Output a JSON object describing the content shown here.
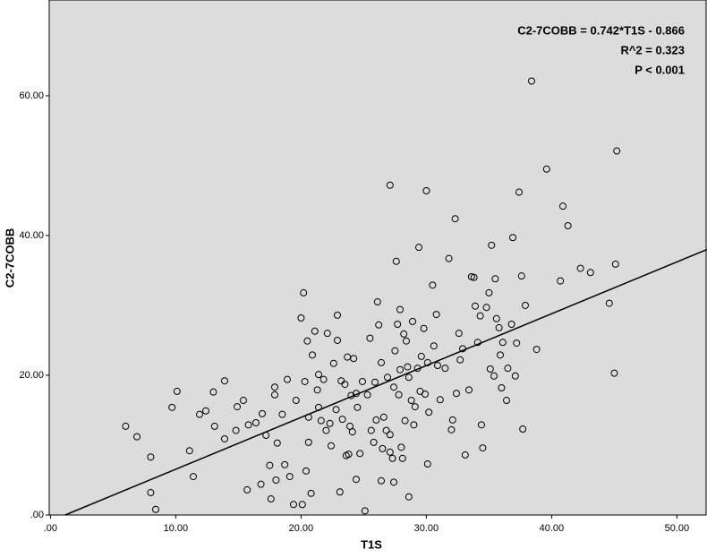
{
  "chart_data": {
    "type": "scatter",
    "x_label": "T1S",
    "y_label": "C2-7COBB",
    "annotations": [
      "C2-7COBB = 0.742*T1S - 0.866",
      "R^2 = 0.323",
      "P < 0.001"
    ],
    "xlim": [
      -0.1,
      52.4
    ],
    "ylim": [
      0,
      73.7
    ],
    "xticks": [
      {
        "value": 0,
        "label": ".00"
      },
      {
        "value": 10,
        "label": "10.00"
      },
      {
        "value": 20,
        "label": "20.00"
      },
      {
        "value": 30,
        "label": "30.00"
      },
      {
        "value": 40,
        "label": "40.00"
      },
      {
        "value": 50,
        "label": "50.00"
      }
    ],
    "yticks": [
      {
        "value": 0,
        "label": ".00"
      },
      {
        "value": 20,
        "label": "20.00"
      },
      {
        "value": 40,
        "label": "40.00"
      },
      {
        "value": 60,
        "label": "60.00"
      }
    ],
    "background": "#dcdcdc",
    "marker_color": "#000000",
    "fit_line": {
      "x": [
        1.17,
        52.4
      ],
      "y": [
        0,
        38.0
      ]
    },
    "x": [
      6.0,
      6.9,
      8.0,
      8.0,
      8.4,
      9.7,
      10.1,
      11.1,
      11.4,
      11.9,
      12.4,
      13.0,
      13.1,
      13.9,
      13.9,
      14.8,
      14.9,
      15.4,
      15.7,
      15.8,
      16.4,
      16.9,
      16.8,
      17.2,
      17.6,
      17.5,
      17.9,
      17.9,
      18.0,
      18.1,
      18.5,
      18.9,
      18.7,
      19.1,
      19.4,
      19.6,
      20.0,
      20.1,
      20.2,
      20.3,
      20.4,
      20.5,
      20.6,
      20.6,
      20.8,
      20.9,
      21.1,
      21.3,
      21.4,
      21.4,
      21.6,
      21.8,
      22.0,
      22.1,
      22.3,
      22.4,
      22.6,
      22.8,
      22.9,
      22.9,
      23.1,
      23.2,
      23.3,
      23.5,
      23.6,
      23.7,
      23.8,
      23.9,
      24.0,
      24.1,
      24.2,
      24.4,
      24.4,
      24.5,
      24.7,
      24.9,
      25.1,
      25.3,
      25.5,
      25.6,
      25.8,
      25.9,
      26.0,
      26.1,
      26.2,
      26.4,
      26.4,
      26.5,
      26.6,
      26.8,
      26.9,
      27.1,
      27.1,
      27.1,
      27.3,
      27.4,
      27.4,
      27.5,
      27.6,
      27.7,
      27.8,
      27.9,
      27.9,
      28.0,
      28.1,
      28.2,
      28.3,
      28.4,
      28.5,
      28.6,
      28.6,
      28.8,
      28.9,
      29.0,
      29.1,
      29.3,
      29.4,
      29.5,
      29.6,
      29.8,
      29.9,
      30.0,
      30.1,
      30.1,
      30.2,
      30.5,
      30.6,
      30.8,
      30.9,
      31.1,
      31.5,
      31.8,
      32.0,
      32.1,
      32.3,
      32.4,
      32.6,
      32.7,
      32.9,
      33.1,
      33.4,
      33.6,
      33.8,
      33.9,
      34.1,
      34.3,
      34.4,
      34.5,
      34.8,
      35.0,
      35.1,
      35.2,
      35.4,
      35.5,
      35.6,
      35.8,
      35.9,
      36.0,
      36.1,
      36.4,
      36.5,
      36.8,
      36.9,
      37.1,
      37.2,
      37.4,
      37.6,
      37.7,
      37.9,
      38.4,
      38.8,
      39.6,
      40.7,
      40.9,
      41.3,
      42.3,
      43.1,
      44.6,
      45.0,
      45.1,
      45.2
    ],
    "values": [
      12.7,
      11.2,
      8.3,
      3.2,
      0.8,
      15.4,
      17.7,
      9.2,
      5.5,
      14.4,
      14.9,
      17.6,
      12.7,
      19.2,
      10.9,
      12.1,
      15.5,
      16.4,
      3.6,
      12.9,
      13.2,
      14.5,
      4.4,
      11.4,
      2.3,
      7.1,
      18.3,
      17.2,
      5.0,
      10.3,
      14.4,
      19.4,
      7.2,
      5.5,
      1.5,
      16.4,
      28.2,
      1.5,
      31.8,
      19.1,
      6.3,
      24.9,
      10.4,
      14.0,
      3.1,
      22.9,
      26.3,
      17.9,
      15.4,
      20.1,
      13.5,
      19.4,
      12.1,
      26.0,
      13.1,
      9.9,
      21.7,
      15.1,
      28.6,
      25.0,
      3.3,
      19.2,
      13.7,
      18.7,
      8.5,
      22.6,
      8.7,
      12.7,
      17.1,
      11.9,
      22.4,
      17.4,
      5.1,
      15.4,
      8.8,
      19.1,
      0.6,
      17.2,
      25.3,
      12.1,
      10.4,
      19.0,
      13.6,
      30.5,
      27.2,
      4.9,
      21.8,
      9.5,
      14.0,
      12.1,
      19.7,
      47.2,
      11.5,
      9.0,
      8.1,
      18.3,
      4.7,
      23.5,
      36.3,
      27.3,
      17.2,
      29.4,
      20.8,
      9.7,
      8.1,
      25.9,
      13.5,
      24.9,
      21.2,
      2.6,
      19.7,
      16.4,
      27.7,
      12.9,
      15.5,
      21.0,
      38.3,
      17.7,
      22.7,
      26.7,
      17.3,
      46.4,
      7.3,
      21.8,
      14.7,
      32.9,
      24.2,
      28.7,
      21.4,
      16.5,
      21.0,
      36.7,
      12.2,
      13.6,
      42.4,
      17.4,
      26.0,
      22.2,
      23.8,
      8.6,
      17.9,
      34.1,
      34.0,
      29.9,
      24.7,
      28.5,
      12.9,
      9.6,
      29.7,
      31.8,
      20.9,
      38.6,
      19.9,
      33.8,
      28.1,
      26.8,
      22.9,
      18.2,
      24.7,
      16.4,
      21.0,
      27.3,
      39.7,
      19.9,
      24.6,
      46.2,
      34.2,
      12.3,
      30.0,
      62.1,
      23.7,
      49.5,
      33.5,
      44.2,
      41.4,
      35.3,
      34.7,
      30.3,
      20.3,
      35.9,
      52.1
    ]
  }
}
